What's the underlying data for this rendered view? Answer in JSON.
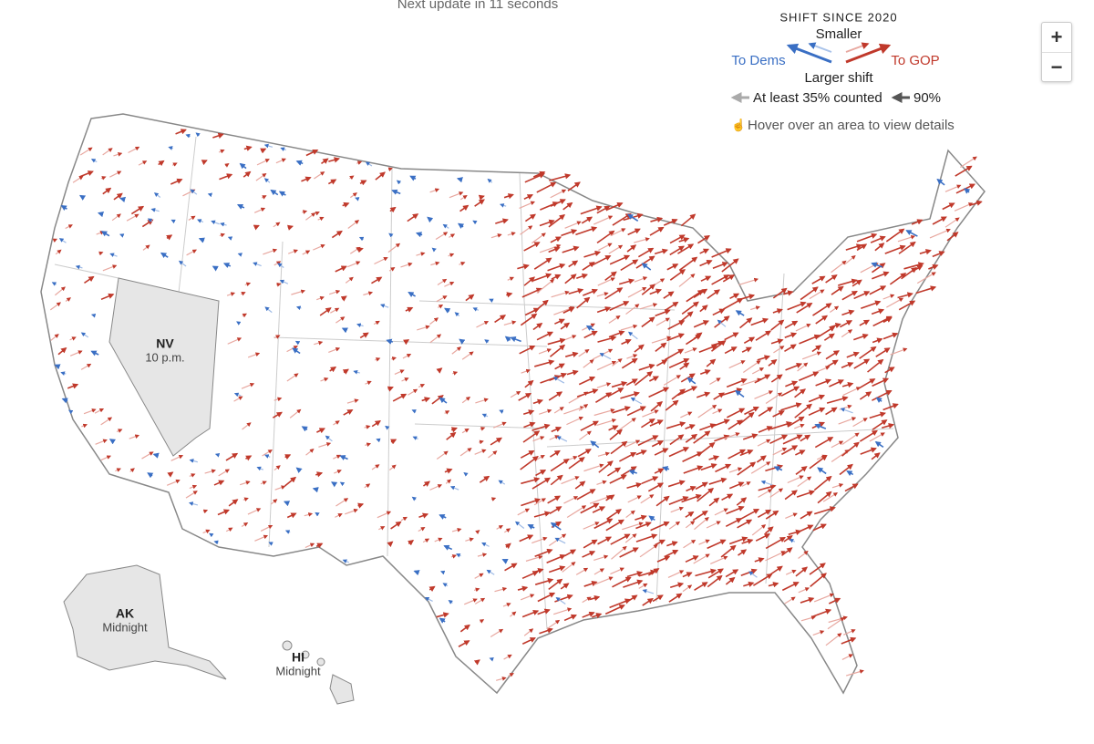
{
  "header": {
    "update_note": "Next update in 11 seconds"
  },
  "legend": {
    "title": "SHIFT SINCE 2020",
    "smaller": "Smaller",
    "to_dems": "To Dems",
    "to_gop": "To GOP",
    "larger": "Larger shift",
    "counted_35": "At least 35% counted",
    "counted_90": "90%",
    "hint": "Hover over an area to view details"
  },
  "zoom": {
    "in": "+",
    "out": "−"
  },
  "states": [
    {
      "abbr": "NV",
      "note": "10 p.m."
    },
    {
      "abbr": "AK",
      "note": "Midnight"
    },
    {
      "abbr": "HI",
      "note": "Midnight"
    }
  ]
}
